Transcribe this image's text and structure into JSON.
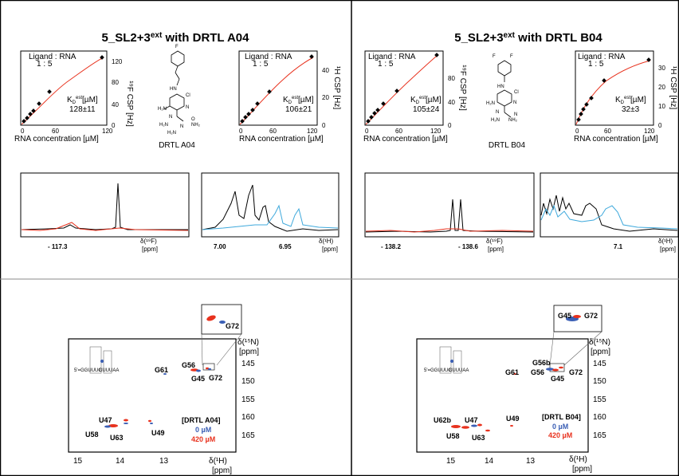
{
  "left": {
    "title": "5_SL2+3",
    "title_sup": "ext",
    "title_suffix": " with DRTL A04",
    "compound": "DRTL A04",
    "f_titration": {
      "legend_line1": "Ligand : RNA",
      "legend_line2": "1 : 5",
      "kd_label": "K",
      "kd_sub": "D",
      "kd_sup": "est",
      "kd_unit": "[µM]",
      "kd_value": "128±11",
      "xlabel": "RNA concentration [µM]",
      "ylabel": "¹⁹F CSP [Hz]",
      "xticks": [
        "0",
        "60",
        "120"
      ],
      "yticks": [
        "0",
        "40",
        "80",
        "120"
      ]
    },
    "h_titration": {
      "legend_line1": "Ligand : RNA",
      "legend_line2": "1 : 5",
      "kd_label": "K",
      "kd_sub": "D",
      "kd_sup": "est",
      "kd_unit": "[µM]",
      "kd_value": "106±21",
      "xlabel": "RNA concentration [µM]",
      "ylabel": "¹H CSP [Hz]",
      "xticks": [
        "0",
        "60",
        "120"
      ],
      "yticks": [
        "0",
        "20",
        "40"
      ]
    },
    "f_spectrum": {
      "tick": "- 117.3",
      "axis": "δ(¹⁹F)",
      "unit": "[ppm]"
    },
    "h_spectrum": {
      "tick1": "7.00",
      "tick2": "6.95",
      "axis": "δ(¹H)",
      "unit": "[ppm]"
    },
    "hsqc": {
      "peaks": [
        "G72",
        "G56",
        "G61",
        "G45",
        "G72",
        "U47",
        "U49",
        "U58",
        "U63"
      ],
      "ylabel": "δ(¹⁵N)",
      "yunit": "[ppm]",
      "yticks": [
        "145",
        "150",
        "155",
        "160",
        "165"
      ],
      "xticks": [
        "15",
        "14",
        "13"
      ],
      "xlabel": "δ(¹H)",
      "xunit": "[ppm]",
      "legend_title": "[DRTL A04]",
      "legend_0": "0 µM",
      "legend_420": "420 µM",
      "rna_seq": "5'=GGUUUG",
      "rna_seq2": "CUUUAA"
    }
  },
  "right": {
    "title": "5_SL2+3",
    "title_sup": "ext",
    "title_suffix": " with DRTL B04",
    "compound": "DRTL B04",
    "f_titration": {
      "legend_line1": "Ligand : RNA",
      "legend_line2": "1 : 5",
      "kd_label": "K",
      "kd_sub": "D",
      "kd_sup": "est",
      "kd_unit": "[µM]",
      "kd_value": "105±24",
      "xlabel": "RNA concentration [µM]",
      "ylabel": "¹⁹F CSP [Hz]",
      "xticks": [
        "0",
        "60",
        "120"
      ],
      "yticks": [
        "0",
        "40",
        "80"
      ]
    },
    "h_titration": {
      "legend_line1": "Ligand : RNA",
      "legend_line2": "1 : 5",
      "kd_label": "K",
      "kd_sub": "D",
      "kd_sup": "est",
      "kd_unit": "[µM]",
      "kd_value": "32±3",
      "xlabel": "RNA concentration [µM]",
      "ylabel": "¹H CSP [Hz]",
      "xticks": [
        "0",
        "60",
        "120"
      ],
      "yticks": [
        "0",
        "10",
        "20",
        "30"
      ]
    },
    "f_spectrum": {
      "tick1": "- 138.2",
      "tick2": "- 138.6",
      "axis": "δ(¹⁹F)",
      "unit": "[ppm]"
    },
    "h_spectrum": {
      "tick": "7.1",
      "axis": "δ(¹H)",
      "unit": "[ppm]"
    },
    "hsqc": {
      "peaks": [
        "G45",
        "G72",
        "G56b",
        "G61",
        "G56",
        "G45",
        "G72",
        "U62b",
        "U47",
        "U49",
        "U58",
        "U63"
      ],
      "ylabel": "δ(¹⁵N)",
      "yunit": "[ppm]",
      "yticks": [
        "145",
        "150",
        "155",
        "160",
        "165"
      ],
      "xticks": [
        "15",
        "14",
        "13"
      ],
      "xlabel": "δ(¹H)",
      "xunit": "[ppm]",
      "legend_title": "[DRTL B04]",
      "legend_0": "0 µM",
      "legend_420": "420 µM",
      "rna_seq": "5'=GGUUUG",
      "rna_seq2": "CUUUAA"
    }
  },
  "colors": {
    "red": "#e8321e",
    "blue": "#3b5fb5",
    "cyan": "#3fa9dc",
    "black": "#000000"
  }
}
